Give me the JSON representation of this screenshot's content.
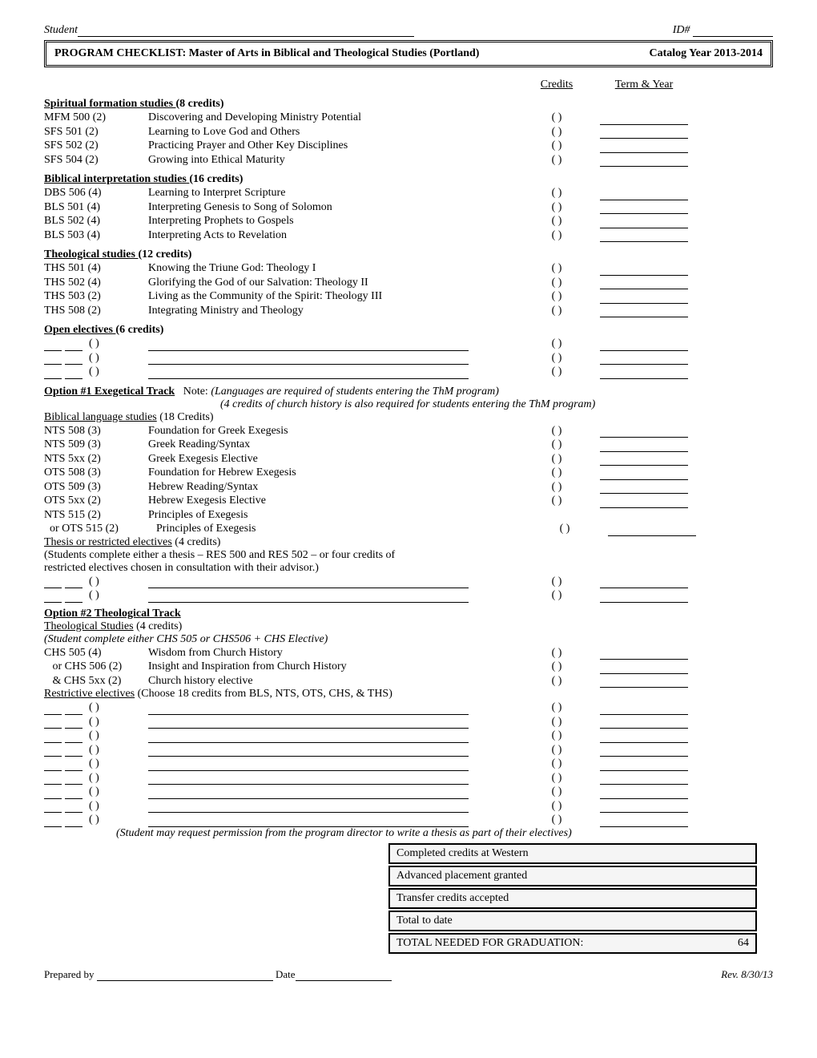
{
  "header": {
    "student_label": "Student",
    "id_label": "ID#",
    "program_title": "PROGRAM CHECKLIST:  Master of Arts in Biblical and Theological Studies (Portland)",
    "catalog_year": "Catalog Year 2013-2014",
    "credits_col": "Credits",
    "term_col": "Term & Year"
  },
  "sections": {
    "spiritual": {
      "title": "Spiritual formation studies",
      "credits": "(8 credits)",
      "rows": [
        {
          "code": "MFM 500 (2)",
          "title": "Discovering and Developing Ministry Potential"
        },
        {
          "code": "SFS 501 (2)",
          "title": "Learning to Love God and Others"
        },
        {
          "code": "SFS 502 (2)",
          "title": "Practicing Prayer and Other Key Disciplines"
        },
        {
          "code": "SFS 504 (2)",
          "title": "Growing into Ethical Maturity"
        }
      ]
    },
    "biblical": {
      "title": "Biblical interpretation studies",
      "credits": "(16 credits)",
      "rows": [
        {
          "code": "DBS 506 (4)",
          "title": "Learning to Interpret Scripture"
        },
        {
          "code": "BLS 501 (4)",
          "title": "Interpreting Genesis to Song of Solomon"
        },
        {
          "code": "BLS 502 (4)",
          "title": "Interpreting Prophets to Gospels"
        },
        {
          "code": "BLS 503 (4)",
          "title": "Interpreting Acts to Revelation"
        }
      ]
    },
    "theological": {
      "title": "Theological studies",
      "credits": "(12 credits)",
      "rows": [
        {
          "code": "THS 501 (4)",
          "title": "Knowing the Triune God: Theology I"
        },
        {
          "code": "THS 502 (4)",
          "title": "Glorifying the God of our Salvation: Theology II"
        },
        {
          "code": "THS 503 (2)",
          "title": "Living as the Community of the Spirit: Theology III"
        },
        {
          "code": "THS 508 (2)",
          "title": "Integrating Ministry and Theology"
        }
      ]
    },
    "open": {
      "title": "Open electives",
      "credits": "(6 credits)",
      "blanks": 3
    },
    "option1": {
      "title": "Option #1 Exegetical Track",
      "note1": "Note: (Languages are required of students entering the ThM program)",
      "note2": "(4 credits of church history is also required for students entering the ThM program)",
      "sub1": "Biblical language studies",
      "sub1_credits": "(18 Credits)",
      "rows": [
        {
          "code": "NTS 508 (3)",
          "title": "Foundation for Greek Exegesis"
        },
        {
          "code": "NTS 509 (3)",
          "title": "Greek Reading/Syntax"
        },
        {
          "code": "NTS 5xx (2)",
          "title": "Greek Exegesis Elective"
        },
        {
          "code": "OTS 508 (3)",
          "title": "Foundation for Hebrew Exegesis"
        },
        {
          "code": "OTS 509 (3)",
          "title": "Hebrew Reading/Syntax"
        },
        {
          "code": "OTS 5xx (2)",
          "title": "Hebrew Exegesis Elective"
        }
      ],
      "row_nts515": {
        "code": "NTS 515 (2)",
        "title": "Principles of Exegesis"
      },
      "row_ots515": {
        "code": "  or OTS 515 (2)",
        "title": "Principles of Exegesis"
      },
      "sub2": "Thesis or restricted electives",
      "sub2_credits": "(4 credits)",
      "thesis_note1": "(Students complete either a thesis – RES 500 and RES 502 – or four credits of",
      "thesis_note2": "restricted electives chosen in consultation with their advisor.)",
      "blanks": 2
    },
    "option2": {
      "title": "Option #2 Theological Track",
      "sub1": "Theological Studies",
      "sub1_credits": "(4 credits)",
      "note": "(Student complete either CHS 505 or CHS506 + CHS Elective)",
      "rows": [
        {
          "code": "CHS 505 (4)",
          "title": "Wisdom from Church History"
        },
        {
          "code": "   or CHS 506 (2)",
          "title": "Insight and Inspiration from Church History"
        },
        {
          "code": "   & CHS 5xx (2)",
          "title": "Church history elective"
        }
      ],
      "sub2": "Restrictive electives",
      "sub2_note": "(Choose 18 credits from BLS, NTS, OTS, CHS, & THS)",
      "blanks": 9,
      "final_note": "(Student may request permission from the program director to write a thesis as part of their electives)"
    }
  },
  "summary": {
    "r1": "Completed credits at Western",
    "r2": "Advanced placement granted",
    "r3": "Transfer credits accepted",
    "r4": "Total to date",
    "r5": "TOTAL NEEDED FOR GRADUATION:",
    "r5_val": "64"
  },
  "footer": {
    "prepared": "Prepared by",
    "date": "Date",
    "rev": "Rev. 8/30/13"
  }
}
